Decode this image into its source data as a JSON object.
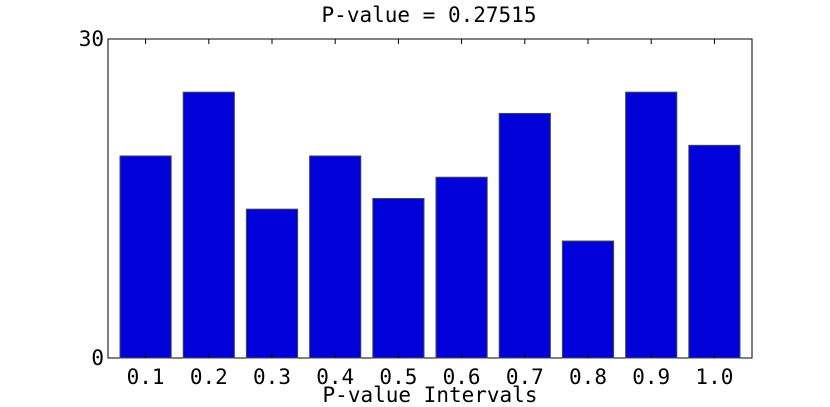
{
  "chart_data": {
    "type": "bar",
    "title": "P-value = 0.27515",
    "xlabel": "P-value Intervals",
    "ylabel": "",
    "categories": [
      "0.1",
      "0.2",
      "0.3",
      "0.4",
      "0.5",
      "0.6",
      "0.7",
      "0.8",
      "0.9",
      "1.0"
    ],
    "values": [
      19,
      25,
      14,
      19,
      15,
      17,
      23,
      11,
      25,
      20
    ],
    "ylim": [
      0,
      30
    ],
    "yticks": [
      "0",
      "30"
    ],
    "grid": false,
    "bar_color": "#0000d9",
    "bar_edge_color": "#4a4a4a"
  }
}
